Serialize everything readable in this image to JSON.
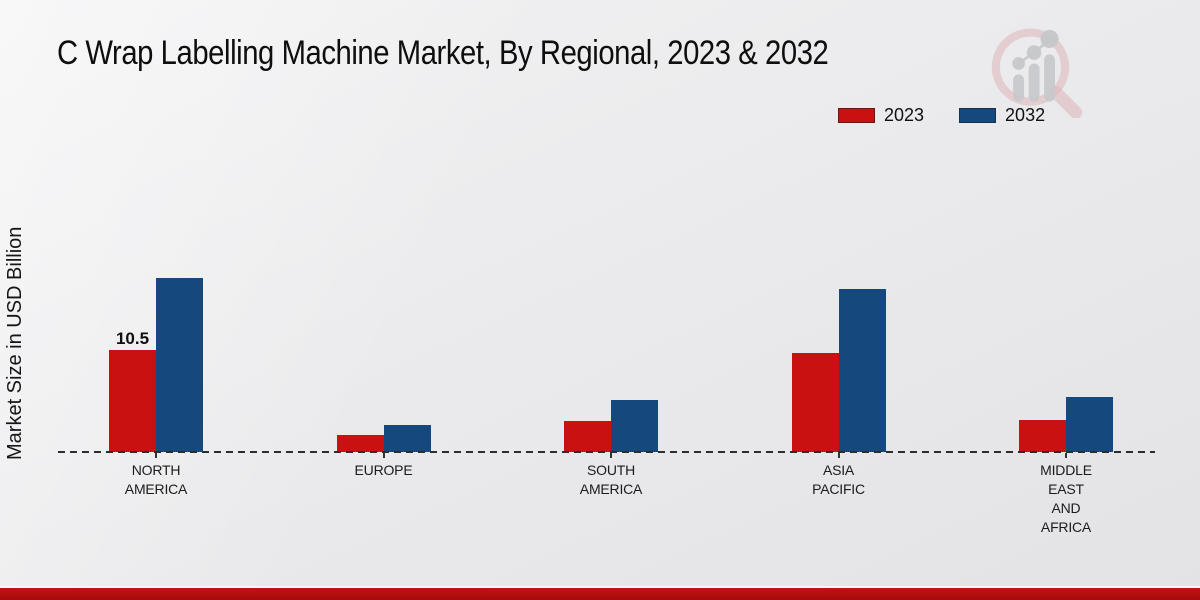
{
  "page": {
    "title": "C Wrap Labelling Machine Market, By Regional, 2023 & 2032"
  },
  "colors": {
    "series_2023": "#c91111",
    "series_2032": "#15497d",
    "footer_strip": "#b50e0e",
    "background": "#ebebed",
    "axis_line": "#2d2d2d"
  },
  "chart_data": {
    "type": "bar",
    "title": "C Wrap Labelling Machine Market, By Regional, 2023 & 2032",
    "xlabel": "",
    "ylabel": "Market Size in USD Billion",
    "categories": [
      "NORTH\nAMERICA",
      "EUROPE",
      "SOUTH\nAMERICA",
      "ASIA\nPACIFIC",
      "MIDDLE\nEAST\nAND\nAFRICA"
    ],
    "series": [
      {
        "name": "2023",
        "color": "#c91111",
        "values": [
          10.5,
          1.8,
          3.2,
          10.2,
          3.3
        ]
      },
      {
        "name": "2032",
        "color": "#15497d",
        "values": [
          17.9,
          2.8,
          5.4,
          16.8,
          5.7
        ]
      }
    ],
    "data_labels": [
      {
        "series": "2023",
        "category_index": 0,
        "text": "10.5"
      }
    ],
    "ylim": [
      0,
      20
    ],
    "grid": false,
    "baseline_style": "dashed",
    "legend_position": "top-right",
    "legend_entries": [
      "2023",
      "2032"
    ]
  },
  "watermark": {
    "name": "market-research-magnifier-logo"
  }
}
